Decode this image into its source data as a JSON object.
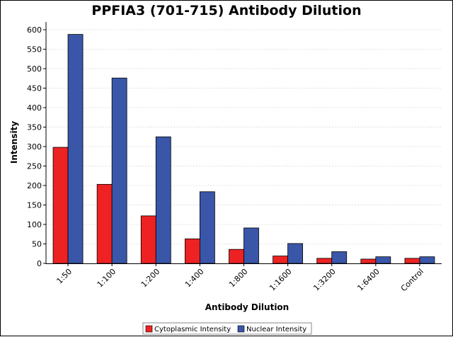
{
  "chart_data": {
    "type": "bar",
    "title": "PPFIA3 (701-715) Antibody Dilution",
    "xlabel": "Antibody Dilution",
    "ylabel": "Intensity",
    "categories": [
      "1:50",
      "1:100",
      "1:200",
      "1:400",
      "1:800",
      "1:1600",
      "1:3200",
      "1:6400",
      "Control"
    ],
    "series": [
      {
        "name": "Cytoplasmic Intensity",
        "color": "#ee2222",
        "values": [
          298,
          203,
          122,
          63,
          36,
          19,
          13,
          11,
          13
        ]
      },
      {
        "name": "Nuclear Intensity",
        "color": "#3a56a8",
        "values": [
          588,
          476,
          325,
          184,
          91,
          51,
          30,
          17,
          17
        ]
      }
    ],
    "ylim": [
      0,
      620
    ],
    "yticks": [
      0,
      50,
      100,
      150,
      200,
      250,
      300,
      350,
      400,
      450,
      500,
      550,
      600
    ],
    "grid": true,
    "legend_position": "bottom-center"
  }
}
